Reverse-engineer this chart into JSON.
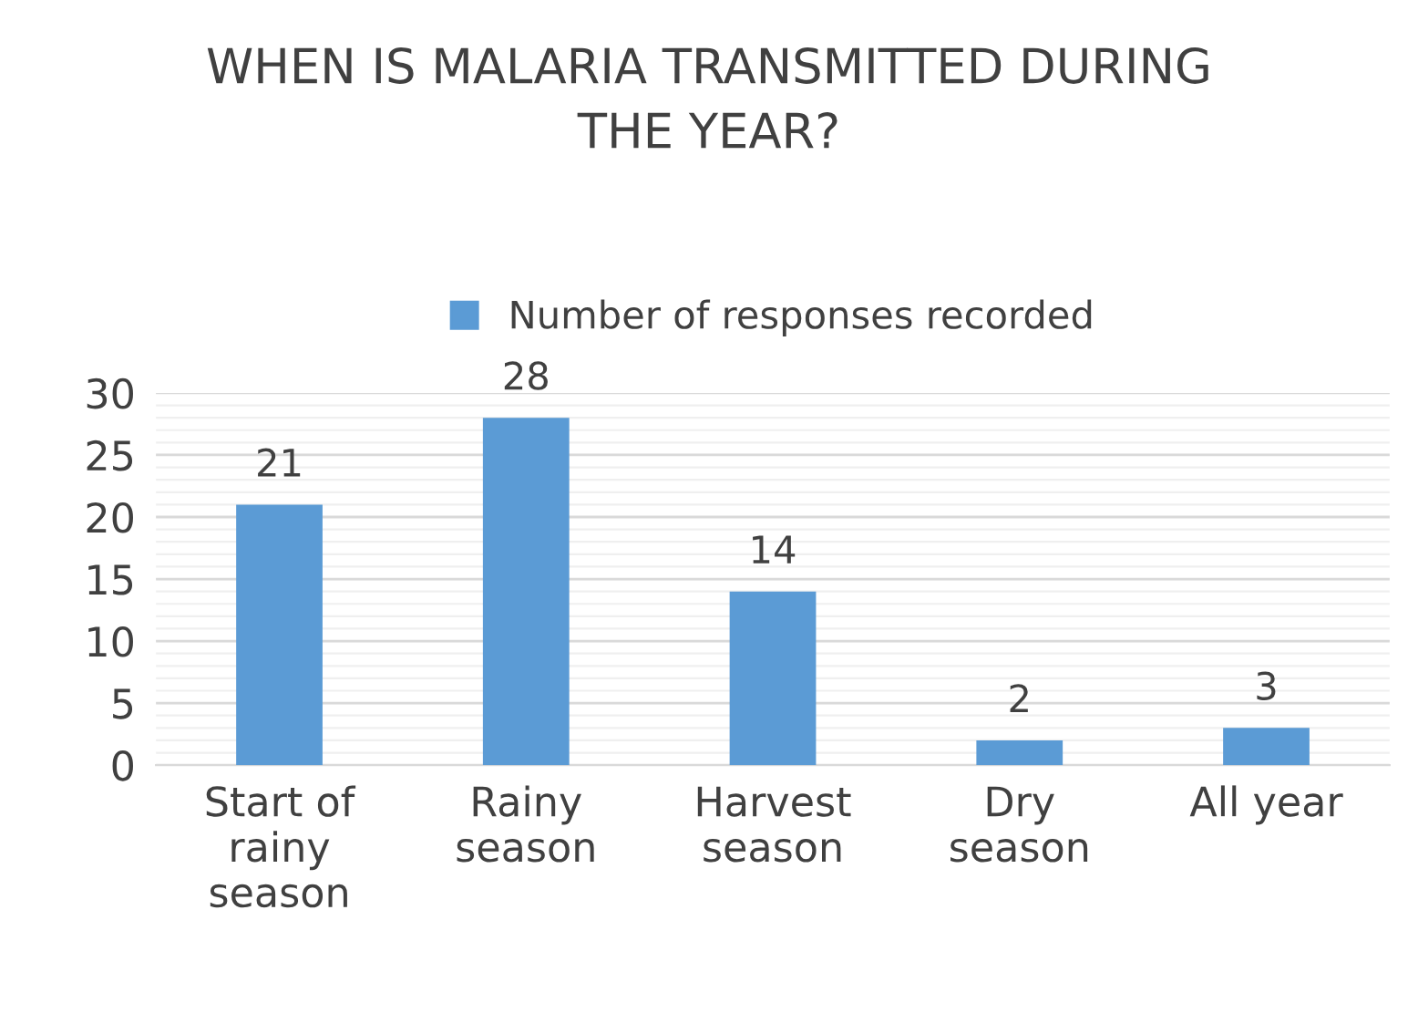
{
  "chart_data": {
    "type": "bar",
    "title": "WHEN IS MALARIA TRANSMITTED DURING\nTHE YEAR?",
    "categories": [
      "Start of\nrainy\nseason",
      "Rainy\nseason",
      "Harvest\nseason",
      "Dry\nseason",
      "All year"
    ],
    "series": [
      {
        "name": "Number of responses recorded",
        "color": "#5b9bd5",
        "values": [
          21,
          28,
          14,
          2,
          3
        ]
      }
    ],
    "ylim": [
      0,
      30
    ],
    "yticks": [
      0,
      5,
      10,
      15,
      20,
      25,
      30
    ],
    "grid": "y",
    "legend": "top",
    "data_labels": true
  }
}
